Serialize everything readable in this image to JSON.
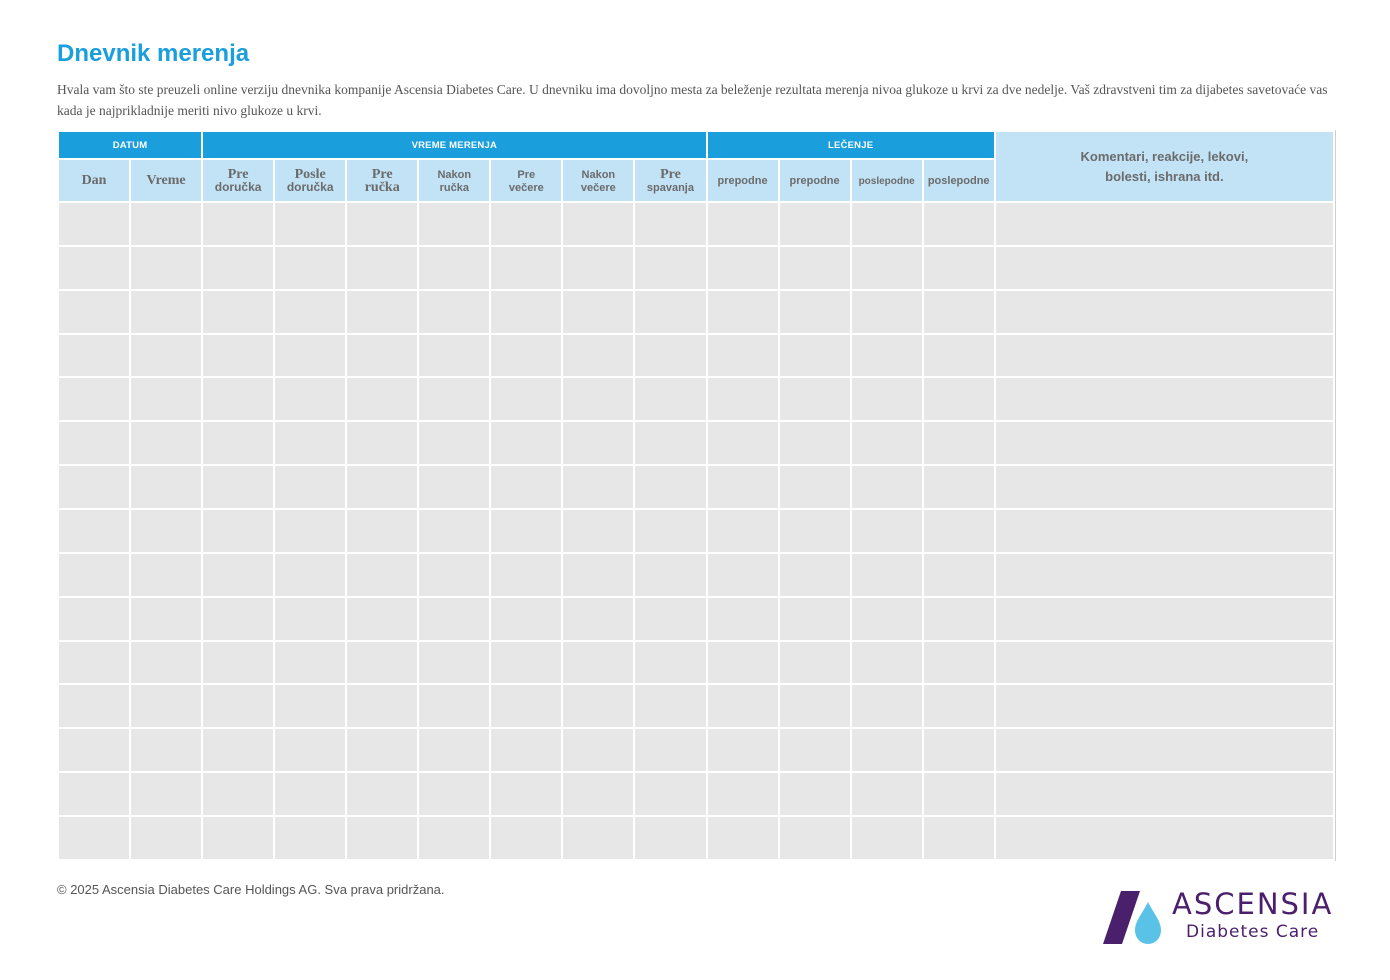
{
  "title": "Dnevnik merenja",
  "intro": "Hvala vam što ste preuzeli online verziju dnevnika kompanije Ascensia Diabetes Care. U dnevniku ima dovoljno mesta za beleženje rezultata merenja nivoa glukoze u krvi za dve nedelje. Vaš zdravstveni tim za dijabetes savetovaće vas kada je najprikladnije meriti nivo glukoze u krvi.",
  "table": {
    "groups": {
      "datum": "DATUM",
      "vreme_merenja": "VREME MERENJA",
      "lecenje": "LEČENJE"
    },
    "columns": {
      "dan": "Dan",
      "vreme": "Vreme",
      "pre_dorucka": [
        "Pre",
        "doručka"
      ],
      "posle_dorucka": [
        "Posle",
        "doručka"
      ],
      "pre_rucka": [
        "Pre",
        "ručka"
      ],
      "nakon_rucka": [
        "Nakon",
        "ručka"
      ],
      "pre_vecere": [
        "Pre",
        "večere"
      ],
      "nakon_vecere": [
        "Nakon",
        "večere"
      ],
      "pre_spavanja": [
        "Pre",
        "spavanja"
      ],
      "lecenje_1": "prepodne",
      "lecenje_2": "prepodne",
      "lecenje_3": "poslepodne",
      "lecenje_4": "poslepodne"
    },
    "comments": [
      "Komentari, reakcije, lekovi,",
      "bolesti, ishrana itd."
    ],
    "row_count": 15,
    "column_count": 14
  },
  "footer": "© 2025 Ascensia Diabetes Care Holdings AG. Sva prava pridržana.",
  "logo": {
    "name": "ASCENSIA",
    "subtitle": "Diabetes Care"
  },
  "colors": {
    "accent": "#1a9fdc",
    "header_light": "#c2e3f6",
    "cell": "#e7e7e8",
    "brand_purple": "#4a1f6b",
    "drop": "#5bc2e7"
  }
}
